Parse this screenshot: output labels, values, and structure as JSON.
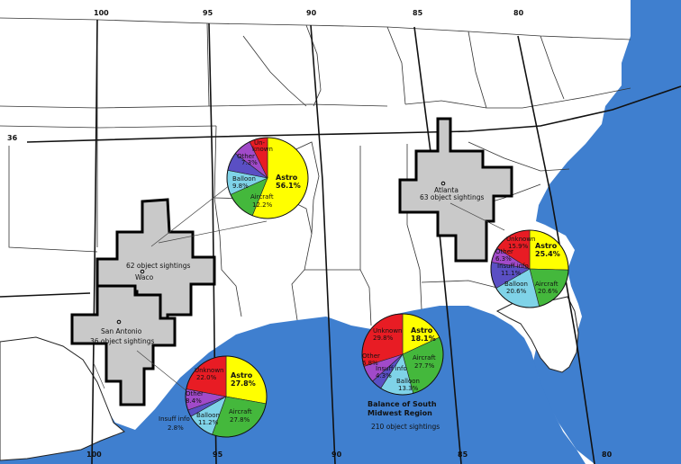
{
  "colors": {
    "ocean": "#3f7fcf",
    "region_fill": "#c9c9c9",
    "astro": "#ffff00",
    "aircraft": "#44b83c",
    "balloon": "#7fd3e8",
    "insuff_info": "#5a4fc4",
    "other": "#a14ac9",
    "unknown": "#e81c24"
  },
  "graticule": {
    "longitude_labels": [
      "100",
      "95",
      "90",
      "85",
      "80",
      "100",
      "95",
      "90",
      "85",
      "80"
    ],
    "latitude_label": "36"
  },
  "regions": {
    "waco": {
      "name": "Waco",
      "sightings": "62 object sightings"
    },
    "san_antonio": {
      "name": "San Antonio",
      "sightings": "36 object sightings"
    },
    "atlanta": {
      "name": "Atlanta",
      "sightings": "63 object sightings"
    },
    "balance": {
      "line1": "Balance of South",
      "line2": "Midwest Region",
      "sightings": "210 object sightings"
    }
  },
  "chart_data": [
    {
      "type": "pie",
      "region": "Waco",
      "slices": [
        {
          "label": "Astro",
          "value": 56.1
        },
        {
          "label": "Aircraft",
          "value": 12.2
        },
        {
          "label": "Balloon",
          "value": 9.8
        },
        {
          "label": "Insuff info",
          "value": 7.3
        },
        {
          "label": "Other",
          "value": 7.3
        },
        {
          "label": "Unknown",
          "value": 7.3
        }
      ],
      "labels": {
        "astro": {
          "name": "Astro",
          "pct": "56.1%"
        },
        "aircraft": {
          "name": "Aircraft",
          "pct": "12.2%"
        },
        "balloon": {
          "name": "Balloon",
          "pct": "9.8%"
        },
        "other": {
          "name": "Other",
          "pct": "7.3%"
        },
        "unknown": {
          "name": "Un-",
          "pct": "known"
        }
      }
    },
    {
      "type": "pie",
      "region": "Atlanta",
      "slices": [
        {
          "label": "Astro",
          "value": 25.4
        },
        {
          "label": "Aircraft",
          "value": 20.6
        },
        {
          "label": "Balloon",
          "value": 20.6
        },
        {
          "label": "Insuff info",
          "value": 11.1
        },
        {
          "label": "Other",
          "value": 6.3
        },
        {
          "label": "Unknown",
          "value": 15.9
        }
      ],
      "labels": {
        "astro": {
          "name": "Astro",
          "pct": "25.4%"
        },
        "aircraft": {
          "name": "Aircraft",
          "pct": "20.6%"
        },
        "balloon": {
          "name": "Balloon",
          "pct": "20.6%"
        },
        "insuff": {
          "name": "Insuff info",
          "pct": "11.1%"
        },
        "other": {
          "name": "Other",
          "pct": "6.3%"
        },
        "unknown": {
          "name": "Unknown",
          "pct": "15.9%"
        }
      }
    },
    {
      "type": "pie",
      "region": "San Antonio",
      "slices": [
        {
          "label": "Astro",
          "value": 27.8
        },
        {
          "label": "Aircraft",
          "value": 27.8
        },
        {
          "label": "Balloon",
          "value": 11.2
        },
        {
          "label": "Insuff info",
          "value": 2.8
        },
        {
          "label": "Other",
          "value": 8.4
        },
        {
          "label": "Unknown",
          "value": 22.0
        }
      ],
      "labels": {
        "astro": {
          "name": "Astro",
          "pct": "27.8%"
        },
        "aircraft": {
          "name": "Aircraft",
          "pct": "27.8%"
        },
        "balloon": {
          "name": "Balloon",
          "pct": "11.2%"
        },
        "insuff": {
          "name": "Insuff info",
          "pct": "2.8%"
        },
        "other": {
          "name": "Other",
          "pct": "8.4%"
        },
        "unknown": {
          "name": "Unknown",
          "pct": "22.0%"
        }
      }
    },
    {
      "type": "pie",
      "region": "Balance of South Midwest Region",
      "slices": [
        {
          "label": "Astro",
          "value": 18.1
        },
        {
          "label": "Aircraft",
          "value": 27.7
        },
        {
          "label": "Balloon",
          "value": 13.3
        },
        {
          "label": "Insuff info",
          "value": 4.3
        },
        {
          "label": "Other",
          "value": 6.8
        },
        {
          "label": "Unknown",
          "value": 29.8
        }
      ],
      "labels": {
        "astro": {
          "name": "Astro",
          "pct": "18.1%"
        },
        "aircraft": {
          "name": "Aircraft",
          "pct": "27.7%"
        },
        "balloon": {
          "name": "Balloon",
          "pct": "13.3%"
        },
        "insuff": {
          "name": "Insuff info",
          "pct": "4.3%"
        },
        "other": {
          "name": "Other",
          "pct": "6.8%"
        },
        "unknown": {
          "name": "Unknown",
          "pct": "29.8%"
        }
      }
    }
  ]
}
